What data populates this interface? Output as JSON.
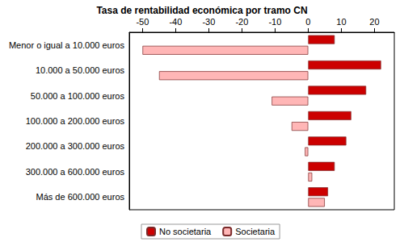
{
  "chart_data": {
    "type": "bar",
    "orientation": "horizontal",
    "title": "Tasa de rentabilidad económica por tramo CN",
    "categories": [
      "Menor o igual a 10.000 euros",
      "10.000 a 50.000 euros",
      "50.000 a 100.000 euros",
      "100.000 a 200.000 euros",
      "200.000 a 300.000 euros",
      "300.000 a 600.000 euros",
      "Más de 600.000 euros"
    ],
    "series": [
      {
        "name": "No societaria",
        "color": "#cc0000",
        "values": [
          8,
          22,
          17.5,
          13,
          11.5,
          8,
          6
        ]
      },
      {
        "name": "Societaria",
        "color": "#ffb6b6",
        "values": [
          -50,
          -45,
          -11,
          -5,
          -1,
          1.2,
          5
        ]
      }
    ],
    "xlim": [
      -54,
      26
    ],
    "xticks": [
      -50,
      -40,
      -30,
      -20,
      -10,
      0,
      10,
      20
    ],
    "grid": false,
    "legend": "bottom-left"
  }
}
